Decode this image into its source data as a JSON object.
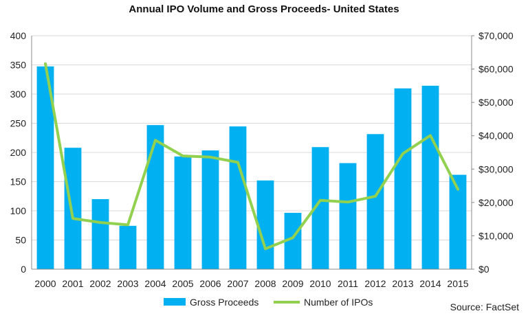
{
  "chart_data": {
    "type": "bar+line",
    "title": "Annual IPO Volume and Gross Proceeds- United States",
    "categories": [
      "2000",
      "2001",
      "2002",
      "2003",
      "2004",
      "2005",
      "2006",
      "2007",
      "2008",
      "2009",
      "2010",
      "2011",
      "2012",
      "2013",
      "2014",
      "2015"
    ],
    "series": [
      {
        "name": "Gross Proceeds",
        "kind": "bar",
        "axis": "right",
        "color": "#00B0F0",
        "values": [
          60800,
          36400,
          21000,
          13000,
          43200,
          33800,
          35600,
          42800,
          26600,
          16900,
          36600,
          31800,
          40500,
          54200,
          55000,
          28300
        ]
      },
      {
        "name": "Number of IPOs",
        "kind": "line",
        "axis": "left",
        "color": "#92D050",
        "values": [
          352,
          87,
          80,
          76,
          221,
          194,
          192,
          183,
          35,
          54,
          118,
          115,
          125,
          198,
          229,
          137
        ]
      }
    ],
    "left_axis": {
      "min": 0,
      "max": 400,
      "ticks": [
        "0",
        "50",
        "100",
        "150",
        "200",
        "250",
        "300",
        "350",
        "400"
      ]
    },
    "right_axis": {
      "min": 0,
      "max": 70000,
      "ticks": [
        "$0",
        "$10,000",
        "$20,000",
        "$30,000",
        "$40,000",
        "$50,000",
        "$60,000",
        "$70,000"
      ]
    },
    "grid": true,
    "legend": {
      "position": "bottom",
      "entries": [
        "Gross Proceeds",
        "Number of IPOs"
      ]
    },
    "source": "Source: FactSet"
  }
}
